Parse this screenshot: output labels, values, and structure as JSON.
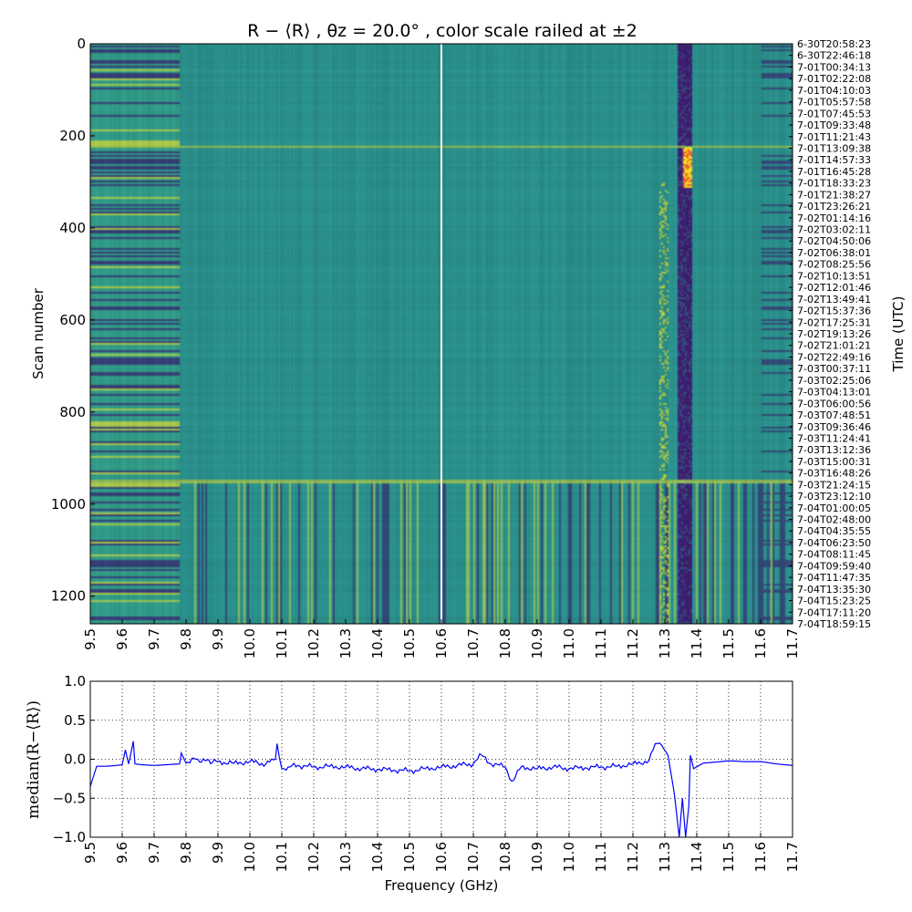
{
  "chart_data": [
    {
      "type": "heatmap",
      "title": "R − ⟨R⟩ , θz = 20.0° , color scale railed at ±2",
      "color_scale_limit": 2,
      "colormap": "viridis",
      "xlabel": "",
      "ylabel": "Scan number",
      "right_ylabel": "Time (UTC)",
      "xlim": [
        9.5,
        11.7
      ],
      "ylim": [
        1260,
        0
      ],
      "x_ticks": [
        "9.5",
        "9.6",
        "9.7",
        "9.8",
        "9.9",
        "10.0",
        "10.1",
        "10.2",
        "10.3",
        "10.4",
        "10.5",
        "10.6",
        "10.7",
        "10.8",
        "10.9",
        "11.0",
        "11.1",
        "11.2",
        "11.3",
        "11.4",
        "11.5",
        "11.6",
        "11.7"
      ],
      "y_ticks": [
        "0",
        "200",
        "400",
        "600",
        "800",
        "1000",
        "1200"
      ],
      "time_ticks": [
        "6-30T20:58:23",
        "6-30T22:46:18",
        "7-01T00:34:13",
        "7-01T02:22:08",
        "7-01T04:10:03",
        "7-01T05:57:58",
        "7-01T07:45:53",
        "7-01T09:33:48",
        "7-01T11:21:43",
        "7-01T13:09:38",
        "7-01T14:57:33",
        "7-01T16:45:28",
        "7-01T18:33:23",
        "7-01T21:38:27",
        "7-01T23:26:21",
        "7-02T01:14:16",
        "7-02T03:02:11",
        "7-02T04:50:06",
        "7-02T06:38:01",
        "7-02T08:25:56",
        "7-02T10:13:51",
        "7-02T12:01:46",
        "7-02T13:49:41",
        "7-02T15:37:36",
        "7-02T17:25:31",
        "7-02T19:13:26",
        "7-02T21:01:21",
        "7-02T22:49:16",
        "7-03T00:37:11",
        "7-03T02:25:06",
        "7-03T04:13:01",
        "7-03T06:00:56",
        "7-03T07:48:51",
        "7-03T09:36:46",
        "7-03T11:24:41",
        "7-03T13:12:36",
        "7-03T15:00:31",
        "7-03T16:48:26",
        "7-03T21:24:15",
        "7-03T23:12:10",
        "7-04T01:00:05",
        "7-04T02:48:00",
        "7-04T04:35:55",
        "7-04T06:23:50",
        "7-04T08:11:45",
        "7-04T09:59:40",
        "7-04T11:47:35",
        "7-04T13:35:30",
        "7-04T15:23:25",
        "7-04T17:11:20",
        "7-04T18:59:15"
      ],
      "features": {
        "blank_column_ghz": 10.6,
        "bright_scan_row": 222,
        "regime_change_scan": 948,
        "strong_rfi_band_ghz": [
          11.34,
          11.38
        ],
        "strong_rfi_scans": [
          220,
          310
        ],
        "rfi_band_2_ghz": [
          11.28,
          11.31
        ],
        "noisy_low_freq_edge_ghz": [
          9.5,
          9.78
        ],
        "noisy_high_freq_edge_ghz": [
          11.6,
          11.7
        ],
        "colors": {
          "background": "#2a8e8a",
          "low": "#3b1e6e",
          "high": "#f5e41f",
          "mid_green": "#3fae7a"
        }
      }
    },
    {
      "type": "line",
      "ylabel": "median(R−⟨R⟩)",
      "xlabel": "Frequency (GHz)",
      "xlim": [
        9.5,
        11.7
      ],
      "ylim": [
        -1.0,
        1.0
      ],
      "grid": true,
      "line_color": "#0000ff",
      "x_ticks": [
        "9.5",
        "9.6",
        "9.7",
        "9.8",
        "9.9",
        "10.0",
        "10.1",
        "10.2",
        "10.3",
        "10.4",
        "10.5",
        "10.6",
        "10.7",
        "10.8",
        "10.9",
        "11.0",
        "11.1",
        "11.2",
        "11.3",
        "11.4",
        "11.5",
        "11.6",
        "11.7"
      ],
      "y_ticks": [
        "1.0",
        "0.5",
        "0.0",
        "−0.5",
        "−1.0"
      ],
      "series": [
        {
          "x": [
            9.5,
            9.52,
            9.55,
            9.58,
            9.6,
            9.61,
            9.62,
            9.635,
            9.64,
            9.66,
            9.7,
            9.74,
            9.78,
            9.785,
            9.8,
            9.83,
            9.86,
            9.9,
            9.95,
            10.0,
            10.05,
            10.08,
            10.085,
            10.1,
            10.12,
            10.15,
            10.2,
            10.25,
            10.3,
            10.35,
            10.4,
            10.45,
            10.5,
            10.55,
            10.6,
            10.65,
            10.7,
            10.72,
            10.75,
            10.8,
            10.82,
            10.85,
            10.9,
            10.95,
            11.0,
            11.05,
            11.1,
            11.15,
            11.2,
            11.25,
            11.27,
            11.29,
            11.31,
            11.33,
            11.345,
            11.355,
            11.365,
            11.375,
            11.38,
            11.39,
            11.42,
            11.45,
            11.5,
            11.55,
            11.6,
            11.65,
            11.7
          ],
          "y": [
            -0.35,
            -0.09,
            -0.09,
            -0.08,
            -0.07,
            0.12,
            -0.06,
            0.23,
            -0.06,
            -0.07,
            -0.08,
            -0.07,
            -0.06,
            0.08,
            -0.05,
            0.0,
            -0.02,
            -0.03,
            -0.05,
            -0.03,
            -0.06,
            0.0,
            0.2,
            -0.12,
            -0.1,
            -0.08,
            -0.1,
            -0.09,
            -0.1,
            -0.12,
            -0.13,
            -0.14,
            -0.15,
            -0.12,
            -0.1,
            -0.08,
            -0.06,
            0.07,
            -0.05,
            -0.1,
            -0.28,
            -0.1,
            -0.12,
            -0.1,
            -0.12,
            -0.11,
            -0.1,
            -0.09,
            -0.06,
            -0.02,
            0.2,
            0.18,
            0.05,
            -0.45,
            -1.0,
            -0.5,
            -1.0,
            -0.6,
            0.05,
            -0.12,
            -0.05,
            -0.04,
            -0.02,
            -0.03,
            -0.03,
            -0.06,
            -0.08
          ]
        }
      ]
    }
  ]
}
